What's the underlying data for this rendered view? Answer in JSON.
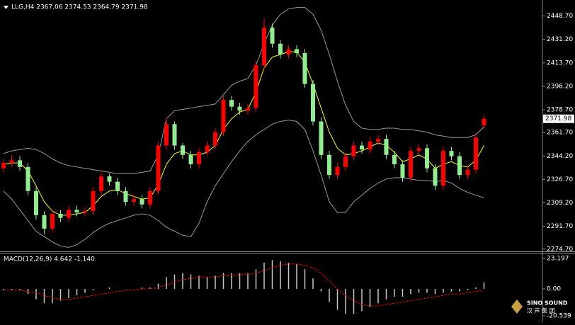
{
  "chart_data": [
    {
      "type": "candlestick",
      "title": "LLG,H4 2367.06 2374.53 2364.79 2371.98",
      "up_color": "#ff0000",
      "down_color": "#90ee90",
      "open": [
        2335,
        2339,
        2341,
        2336,
        2318,
        2300,
        2290,
        2301,
        2298,
        2304,
        2302,
        2303,
        2318,
        2329,
        2325,
        2318,
        2310,
        2312,
        2308,
        2318,
        2352,
        2368,
        2352,
        2345,
        2338,
        2347,
        2352,
        2362,
        2386,
        2381,
        2378,
        2380,
        2412,
        2440,
        2428,
        2420,
        2424,
        2421,
        2398,
        2370,
        2345,
        2330,
        2336,
        2344,
        2352,
        2349,
        2355,
        2357,
        2345,
        2338,
        2328,
        2348,
        2350,
        2335,
        2322,
        2348,
        2344,
        2330,
        2334,
        2367.06
      ],
      "high": [
        2342,
        2345,
        2344,
        2339,
        2321,
        2303,
        2304,
        2304,
        2307,
        2307,
        2306,
        2321,
        2332,
        2331,
        2328,
        2321,
        2315,
        2315,
        2321,
        2355,
        2372,
        2370,
        2354,
        2348,
        2350,
        2355,
        2365,
        2389,
        2389,
        2384,
        2383,
        2415,
        2447,
        2443,
        2431,
        2427,
        2427,
        2424,
        2401,
        2373,
        2348,
        2339,
        2347,
        2355,
        2355,
        2358,
        2360,
        2360,
        2348,
        2341,
        2351,
        2353,
        2353,
        2338,
        2351,
        2351,
        2347,
        2337,
        2361,
        2374.53
      ],
      "low": [
        2332,
        2336,
        2333,
        2315,
        2297,
        2286,
        2287,
        2295,
        2295,
        2299,
        2299,
        2300,
        2315,
        2322,
        2315,
        2307,
        2307,
        2305,
        2305,
        2315,
        2349,
        2349,
        2342,
        2335,
        2335,
        2344,
        2349,
        2359,
        2378,
        2375,
        2375,
        2377,
        2409,
        2425,
        2417,
        2417,
        2418,
        2395,
        2367,
        2342,
        2327,
        2327,
        2333,
        2341,
        2346,
        2346,
        2352,
        2342,
        2335,
        2325,
        2325,
        2345,
        2332,
        2319,
        2319,
        2341,
        2327,
        2327,
        2331,
        2364.79
      ],
      "close": [
        2339,
        2341,
        2336,
        2318,
        2300,
        2290,
        2301,
        2298,
        2304,
        2302,
        2303,
        2318,
        2329,
        2325,
        2318,
        2310,
        2312,
        2308,
        2318,
        2352,
        2368,
        2352,
        2345,
        2338,
        2347,
        2352,
        2362,
        2386,
        2381,
        2378,
        2380,
        2412,
        2440,
        2428,
        2420,
        2424,
        2421,
        2398,
        2370,
        2345,
        2330,
        2336,
        2344,
        2352,
        2349,
        2355,
        2357,
        2345,
        2338,
        2328,
        2348,
        2350,
        2335,
        2322,
        2348,
        2344,
        2330,
        2334,
        2358,
        2371.98
      ],
      "overlays": [
        {
          "color": "#ffff00",
          "values": [
            2338,
            2339,
            2339,
            2333,
            2322,
            2310,
            2303,
            2300,
            2300,
            2301,
            2302,
            2307,
            2314,
            2318,
            2319,
            2316,
            2314,
            2312,
            2313,
            2323,
            2338,
            2346,
            2348,
            2345,
            2345,
            2347,
            2352,
            2364,
            2372,
            2377,
            2379,
            2392,
            2410,
            2418,
            2420,
            2422,
            2422,
            2414,
            2398,
            2380,
            2362,
            2350,
            2345,
            2346,
            2348,
            2351,
            2354,
            2352,
            2347,
            2340,
            2342,
            2345,
            2342,
            2335,
            2338,
            2340,
            2337,
            2336,
            2341,
            2352
          ]
        },
        {
          "color": "#9a9a9a",
          "values": [
            2346,
            2348,
            2349,
            2350,
            2349,
            2346,
            2342,
            2339,
            2337,
            2336,
            2335,
            2334,
            2333,
            2332,
            2331,
            2331,
            2331,
            2332,
            2333,
            2345,
            2372,
            2378,
            2379,
            2380,
            2381,
            2382,
            2383,
            2390,
            2397,
            2400,
            2402,
            2412,
            2428,
            2442,
            2450,
            2454,
            2455,
            2455,
            2450,
            2438,
            2420,
            2400,
            2382,
            2370,
            2365,
            2364,
            2364,
            2365,
            2365,
            2364,
            2364,
            2363,
            2362,
            2360,
            2359,
            2358,
            2358,
            2358,
            2360,
            2366
          ]
        },
        {
          "color": "#9a9a9a",
          "values": [
            2318,
            2312,
            2304,
            2296,
            2288,
            2284,
            2280,
            2277,
            2276,
            2278,
            2282,
            2287,
            2291,
            2294,
            2296,
            2298,
            2300,
            2301,
            2300,
            2296,
            2291,
            2288,
            2285,
            2284,
            2294,
            2310,
            2322,
            2331,
            2340,
            2348,
            2355,
            2360,
            2364,
            2368,
            2370,
            2371,
            2370,
            2364,
            2348,
            2330,
            2310,
            2302,
            2302,
            2310,
            2315,
            2320,
            2324,
            2327,
            2328,
            2328,
            2327,
            2326,
            2326,
            2325,
            2326,
            2324,
            2320,
            2317,
            2315,
            2313
          ]
        }
      ],
      "ylim": [
        2273,
        2458
      ],
      "yticks": [
        {
          "value": 2274.7,
          "label": "2274.70"
        },
        {
          "value": 2291.7,
          "label": "2291.70"
        },
        {
          "value": 2309.2,
          "label": "2309.20"
        },
        {
          "value": 2326.7,
          "label": "2326.70"
        },
        {
          "value": 2344.2,
          "label": "2344.20"
        },
        {
          "value": 2361.7,
          "label": "2361.70"
        },
        {
          "value": 2378.7,
          "label": "2378.70"
        },
        {
          "value": 2396.2,
          "label": "2396.20"
        },
        {
          "value": 2413.7,
          "label": "2413.70"
        },
        {
          "value": 2431.2,
          "label": "2431.20"
        },
        {
          "value": 2448.7,
          "label": "2448.70"
        }
      ]
    },
    {
      "type": "macd",
      "title": "MACD(12,26,9) 4.642 -1.140",
      "color": "#c8c8c8",
      "signal_color": "#ff0000",
      "values": [
        -1,
        -1,
        -1,
        -4,
        -8,
        -11,
        -11,
        -9,
        -7,
        -5,
        -3,
        -1,
        0,
        1,
        0,
        0,
        0,
        1,
        1,
        4,
        9,
        11,
        12,
        11,
        10,
        9,
        10,
        12,
        12,
        12,
        12,
        15,
        20,
        22,
        21,
        20,
        19,
        15,
        8,
        -2,
        -10,
        -16,
        -19,
        -19,
        -17,
        -14,
        -11,
        -8,
        -6,
        -6,
        -4,
        -3,
        -3,
        -4,
        -3,
        -2,
        -2,
        -1,
        1,
        5
      ],
      "signal": [
        -1,
        -1,
        -1,
        -2,
        -3,
        -5,
        -7,
        -8,
        -8,
        -7,
        -6,
        -5,
        -4,
        -3,
        -2,
        -1,
        -1,
        0,
        0,
        1,
        3,
        5,
        7,
        8,
        9,
        9,
        9,
        10,
        10,
        11,
        11,
        12,
        14,
        16,
        18,
        19,
        19,
        18,
        16,
        12,
        6,
        0,
        -5,
        -9,
        -12,
        -13,
        -13,
        -12,
        -11,
        -10,
        -9,
        -8,
        -7,
        -6,
        -5,
        -4,
        -4,
        -3,
        -2,
        -1
      ],
      "ylim": [
        -23.8,
        27
      ],
      "yticks": [
        -20.539,
        {
          "value": 0,
          "label": "0.00"
        },
        23.197
      ]
    }
  ],
  "watermark": {
    "brand": "SINO SOUND",
    "cn": "汉 声 集 团"
  }
}
